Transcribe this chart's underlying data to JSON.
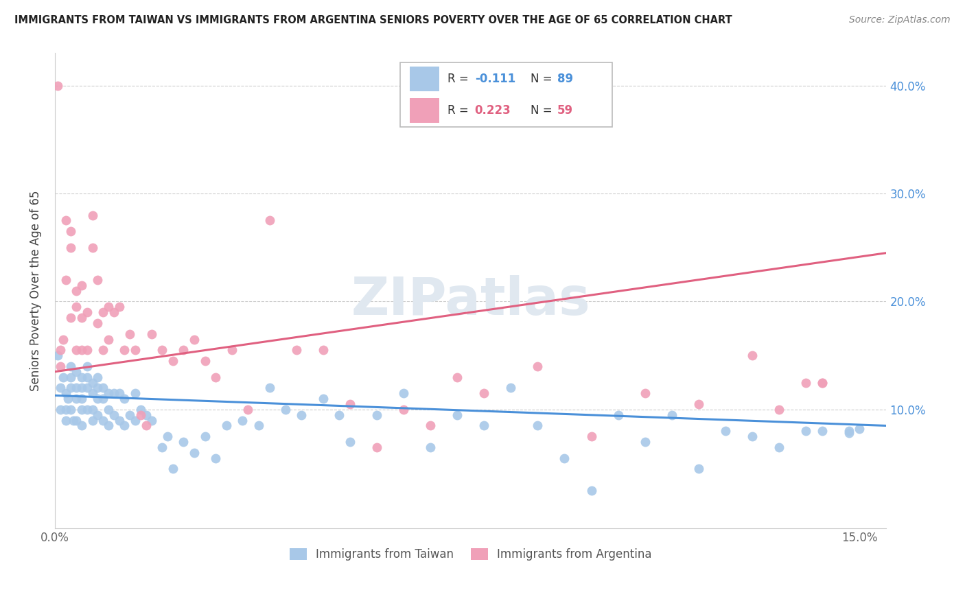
{
  "title": "IMMIGRANTS FROM TAIWAN VS IMMIGRANTS FROM ARGENTINA SENIORS POVERTY OVER THE AGE OF 65 CORRELATION CHART",
  "source": "Source: ZipAtlas.com",
  "ylabel": "Seniors Poverty Over the Age of 65",
  "xlim": [
    0.0,
    0.155
  ],
  "ylim": [
    -0.01,
    0.43
  ],
  "taiwan_color": "#a8c8e8",
  "argentina_color": "#f0a0b8",
  "taiwan_line_color": "#4a90d9",
  "argentina_line_color": "#e06080",
  "taiwan_R": -0.111,
  "taiwan_N": 89,
  "argentina_R": 0.223,
  "argentina_N": 59,
  "watermark": "ZIPatlas",
  "taiwan_x": [
    0.0005,
    0.001,
    0.001,
    0.0015,
    0.002,
    0.002,
    0.002,
    0.0025,
    0.003,
    0.003,
    0.003,
    0.003,
    0.0035,
    0.004,
    0.004,
    0.004,
    0.004,
    0.005,
    0.005,
    0.005,
    0.005,
    0.005,
    0.006,
    0.006,
    0.006,
    0.006,
    0.007,
    0.007,
    0.007,
    0.007,
    0.008,
    0.008,
    0.008,
    0.008,
    0.009,
    0.009,
    0.009,
    0.01,
    0.01,
    0.01,
    0.011,
    0.011,
    0.012,
    0.012,
    0.013,
    0.013,
    0.014,
    0.015,
    0.015,
    0.016,
    0.017,
    0.018,
    0.02,
    0.021,
    0.022,
    0.024,
    0.026,
    0.028,
    0.03,
    0.032,
    0.035,
    0.038,
    0.04,
    0.043,
    0.046,
    0.05,
    0.053,
    0.055,
    0.06,
    0.065,
    0.07,
    0.075,
    0.08,
    0.085,
    0.09,
    0.095,
    0.1,
    0.105,
    0.11,
    0.115,
    0.12,
    0.125,
    0.13,
    0.135,
    0.14,
    0.143,
    0.148,
    0.148,
    0.15
  ],
  "taiwan_y": [
    0.15,
    0.12,
    0.1,
    0.13,
    0.115,
    0.1,
    0.09,
    0.11,
    0.14,
    0.13,
    0.12,
    0.1,
    0.09,
    0.135,
    0.12,
    0.11,
    0.09,
    0.13,
    0.12,
    0.11,
    0.1,
    0.085,
    0.14,
    0.13,
    0.12,
    0.1,
    0.125,
    0.115,
    0.1,
    0.09,
    0.13,
    0.12,
    0.11,
    0.095,
    0.12,
    0.11,
    0.09,
    0.115,
    0.1,
    0.085,
    0.115,
    0.095,
    0.115,
    0.09,
    0.11,
    0.085,
    0.095,
    0.115,
    0.09,
    0.1,
    0.095,
    0.09,
    0.065,
    0.075,
    0.045,
    0.07,
    0.06,
    0.075,
    0.055,
    0.085,
    0.09,
    0.085,
    0.12,
    0.1,
    0.095,
    0.11,
    0.095,
    0.07,
    0.095,
    0.115,
    0.065,
    0.095,
    0.085,
    0.12,
    0.085,
    0.055,
    0.025,
    0.095,
    0.07,
    0.095,
    0.045,
    0.08,
    0.075,
    0.065,
    0.08,
    0.08,
    0.08,
    0.078,
    0.082
  ],
  "argentina_x": [
    0.0005,
    0.001,
    0.001,
    0.0015,
    0.002,
    0.002,
    0.003,
    0.003,
    0.003,
    0.004,
    0.004,
    0.004,
    0.005,
    0.005,
    0.005,
    0.006,
    0.006,
    0.007,
    0.007,
    0.008,
    0.008,
    0.009,
    0.009,
    0.01,
    0.01,
    0.011,
    0.012,
    0.013,
    0.014,
    0.015,
    0.016,
    0.017,
    0.018,
    0.02,
    0.022,
    0.024,
    0.026,
    0.028,
    0.03,
    0.033,
    0.036,
    0.04,
    0.045,
    0.05,
    0.055,
    0.06,
    0.065,
    0.07,
    0.075,
    0.08,
    0.09,
    0.1,
    0.11,
    0.12,
    0.13,
    0.135,
    0.14,
    0.143,
    0.143
  ],
  "argentina_y": [
    0.4,
    0.155,
    0.14,
    0.165,
    0.275,
    0.22,
    0.265,
    0.25,
    0.185,
    0.21,
    0.195,
    0.155,
    0.215,
    0.185,
    0.155,
    0.19,
    0.155,
    0.28,
    0.25,
    0.22,
    0.18,
    0.19,
    0.155,
    0.195,
    0.165,
    0.19,
    0.195,
    0.155,
    0.17,
    0.155,
    0.095,
    0.085,
    0.17,
    0.155,
    0.145,
    0.155,
    0.165,
    0.145,
    0.13,
    0.155,
    0.1,
    0.275,
    0.155,
    0.155,
    0.105,
    0.065,
    0.1,
    0.085,
    0.13,
    0.115,
    0.14,
    0.075,
    0.115,
    0.105,
    0.15,
    0.1,
    0.125,
    0.125,
    0.125
  ]
}
